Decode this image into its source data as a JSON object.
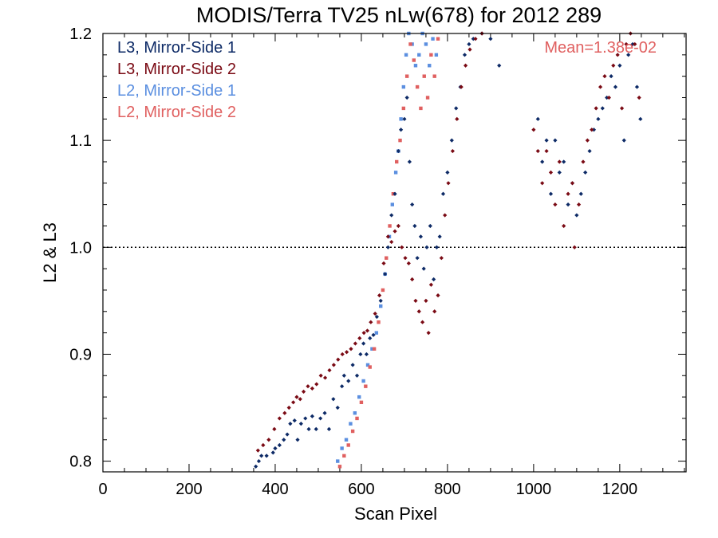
{
  "chart_data": {
    "type": "scatter",
    "title": "MODIS/Terra TV25 nLw(678) for 2012 289",
    "xlabel": "Scan Pixel",
    "ylabel": "L2 & L3",
    "xlim": [
      0,
      1354
    ],
    "ylim": [
      0.79,
      1.2
    ],
    "xticks": [
      {
        "value": 0,
        "label": "0"
      },
      {
        "value": 200,
        "label": "200"
      },
      {
        "value": 400,
        "label": "400"
      },
      {
        "value": 600,
        "label": "600"
      },
      {
        "value": 800,
        "label": "800"
      },
      {
        "value": 1000,
        "label": "1000"
      },
      {
        "value": 1200,
        "label": "1200"
      }
    ],
    "yticks": [
      {
        "value": 0.8,
        "label": "0.8"
      },
      {
        "value": 0.9,
        "label": "0.9"
      },
      {
        "value": 1.0,
        "label": "1.0"
      },
      {
        "value": 1.1,
        "label": "1.1"
      },
      {
        "value": 1.2,
        "label": "1.2"
      }
    ],
    "reference_line": {
      "y": 1.0,
      "style": "dotted"
    },
    "annotation": {
      "text": "Mean=1.38e-02",
      "color": "#e06060"
    },
    "legend_position": "top-left",
    "series": [
      {
        "name": "L3, Mirror-Side 1",
        "color": "#0d2a66",
        "marker": "diamond",
        "points": [
          [
            355,
            0.795
          ],
          [
            362,
            0.8
          ],
          [
            368,
            0.805
          ],
          [
            380,
            0.805
          ],
          [
            395,
            0.808
          ],
          [
            400,
            0.812
          ],
          [
            410,
            0.815
          ],
          [
            420,
            0.82
          ],
          [
            428,
            0.825
          ],
          [
            435,
            0.835
          ],
          [
            445,
            0.838
          ],
          [
            452,
            0.82
          ],
          [
            460,
            0.835
          ],
          [
            470,
            0.84
          ],
          [
            478,
            0.83
          ],
          [
            486,
            0.842
          ],
          [
            495,
            0.83
          ],
          [
            505,
            0.84
          ],
          [
            515,
            0.845
          ],
          [
            525,
            0.83
          ],
          [
            535,
            0.858
          ],
          [
            545,
            0.85
          ],
          [
            555,
            0.87
          ],
          [
            560,
            0.88
          ],
          [
            570,
            0.875
          ],
          [
            580,
            0.89
          ],
          [
            590,
            0.88
          ],
          [
            598,
            0.9
          ],
          [
            605,
            0.91
          ],
          [
            612,
            0.9
          ],
          [
            620,
            0.915
          ],
          [
            628,
            0.918
          ],
          [
            636,
            0.935
          ],
          [
            645,
            0.95
          ],
          [
            655,
            0.975
          ],
          [
            662,
            1.0
          ],
          [
            670,
            1.03
          ],
          [
            678,
            1.05
          ],
          [
            686,
            1.09
          ],
          [
            692,
            1.11
          ],
          [
            700,
            1.12
          ],
          [
            706,
            1.14
          ],
          [
            712,
            1.08
          ],
          [
            718,
            1.04
          ],
          [
            724,
            1.02
          ],
          [
            730,
            0.99
          ],
          [
            738,
            1.01
          ],
          [
            745,
            0.98
          ],
          [
            752,
            1.0
          ],
          [
            760,
            1.02
          ],
          [
            768,
            0.97
          ],
          [
            775,
            1.0
          ],
          [
            782,
            1.01
          ],
          [
            790,
            1.05
          ],
          [
            800,
            1.07
          ],
          [
            810,
            1.1
          ],
          [
            820,
            1.13
          ],
          [
            830,
            1.15
          ],
          [
            840,
            1.18
          ],
          [
            850,
            1.19
          ],
          [
            860,
            1.195
          ],
          [
            880,
            1.2
          ],
          [
            900,
            1.195
          ],
          [
            920,
            1.17
          ],
          [
            1010,
            1.12
          ],
          [
            1020,
            1.08
          ],
          [
            1030,
            1.1
          ],
          [
            1040,
            1.05
          ],
          [
            1050,
            1.1
          ],
          [
            1060,
            1.07
          ],
          [
            1070,
            1.08
          ],
          [
            1080,
            1.04
          ],
          [
            1090,
            1.06
          ],
          [
            1100,
            1.03
          ],
          [
            1110,
            1.05
          ],
          [
            1120,
            1.07
          ],
          [
            1130,
            1.09
          ],
          [
            1140,
            1.11
          ],
          [
            1150,
            1.12
          ],
          [
            1160,
            1.13
          ],
          [
            1170,
            1.14
          ],
          [
            1180,
            1.16
          ],
          [
            1190,
            1.15
          ],
          [
            1200,
            1.17
          ],
          [
            1210,
            1.1
          ],
          [
            1220,
            1.18
          ],
          [
            1230,
            1.19
          ],
          [
            1240,
            1.15
          ],
          [
            1248,
            1.12
          ]
        ]
      },
      {
        "name": "L3, Mirror-Side 2",
        "color": "#7a0a14",
        "marker": "diamond",
        "points": [
          [
            360,
            0.81
          ],
          [
            372,
            0.815
          ],
          [
            385,
            0.82
          ],
          [
            398,
            0.83
          ],
          [
            410,
            0.84
          ],
          [
            422,
            0.845
          ],
          [
            432,
            0.85
          ],
          [
            442,
            0.855
          ],
          [
            450,
            0.86
          ],
          [
            458,
            0.858
          ],
          [
            466,
            0.865
          ],
          [
            476,
            0.87
          ],
          [
            486,
            0.868
          ],
          [
            496,
            0.872
          ],
          [
            506,
            0.88
          ],
          [
            516,
            0.878
          ],
          [
            526,
            0.885
          ],
          [
            536,
            0.89
          ],
          [
            546,
            0.895
          ],
          [
            556,
            0.9
          ],
          [
            566,
            0.902
          ],
          [
            576,
            0.905
          ],
          [
            586,
            0.91
          ],
          [
            596,
            0.915
          ],
          [
            606,
            0.92
          ],
          [
            614,
            0.922
          ],
          [
            622,
            0.93
          ],
          [
            632,
            0.938
          ],
          [
            642,
            0.955
          ],
          [
            652,
            0.985
          ],
          [
            662,
            1.01
          ],
          [
            670,
            1.005
          ],
          [
            678,
            1.015
          ],
          [
            686,
            1.02
          ],
          [
            694,
            1.0
          ],
          [
            702,
            0.99
          ],
          [
            710,
            0.985
          ],
          [
            718,
            0.97
          ],
          [
            726,
            0.95
          ],
          [
            734,
            0.94
          ],
          [
            742,
            0.93
          ],
          [
            750,
            0.95
          ],
          [
            756,
            0.92
          ],
          [
            762,
            0.965
          ],
          [
            770,
            0.94
          ],
          [
            778,
            0.955
          ],
          [
            786,
            0.99
          ],
          [
            794,
            1.03
          ],
          [
            802,
            1.06
          ],
          [
            812,
            1.09
          ],
          [
            822,
            1.12
          ],
          [
            832,
            1.15
          ],
          [
            842,
            1.17
          ],
          [
            852,
            1.185
          ],
          [
            865,
            1.195
          ],
          [
            880,
            1.2
          ],
          [
            1000,
            1.11
          ],
          [
            1010,
            1.09
          ],
          [
            1020,
            1.06
          ],
          [
            1030,
            1.09
          ],
          [
            1040,
            1.07
          ],
          [
            1050,
            1.04
          ],
          [
            1060,
            1.08
          ],
          [
            1070,
            1.02
          ],
          [
            1080,
            1.05
          ],
          [
            1090,
            1.06
          ],
          [
            1095,
            1.0
          ],
          [
            1105,
            1.04
          ],
          [
            1115,
            1.08
          ],
          [
            1125,
            1.1
          ],
          [
            1135,
            1.11
          ],
          [
            1145,
            1.13
          ],
          [
            1155,
            1.15
          ],
          [
            1165,
            1.16
          ],
          [
            1175,
            1.14
          ],
          [
            1185,
            1.17
          ],
          [
            1195,
            1.18
          ],
          [
            1205,
            1.13
          ],
          [
            1215,
            1.19
          ],
          [
            1225,
            1.2
          ],
          [
            1235,
            1.19
          ],
          [
            1245,
            1.14
          ]
        ]
      },
      {
        "name": "L2, Mirror-Side 1",
        "color": "#5b8fe0",
        "marker": "square",
        "points": [
          [
            545,
            0.8
          ],
          [
            555,
            0.812
          ],
          [
            565,
            0.82
          ],
          [
            575,
            0.835
          ],
          [
            585,
            0.845
          ],
          [
            595,
            0.86
          ],
          [
            605,
            0.875
          ],
          [
            615,
            0.89
          ],
          [
            625,
            0.905
          ],
          [
            635,
            0.92
          ],
          [
            645,
            0.945
          ],
          [
            655,
            0.975
          ],
          [
            665,
            1.01
          ],
          [
            672,
            1.04
          ],
          [
            680,
            1.07
          ],
          [
            686,
            1.09
          ],
          [
            692,
            1.12
          ],
          [
            698,
            1.15
          ],
          [
            704,
            1.18
          ],
          [
            710,
            1.2
          ],
          [
            718,
            1.19
          ],
          [
            726,
            1.17
          ],
          [
            734,
            1.18
          ],
          [
            742,
            1.2
          ],
          [
            750,
            1.19
          ],
          [
            758,
            1.17
          ],
          [
            766,
            1.195
          ],
          [
            774,
            1.18
          ]
        ]
      },
      {
        "name": "L2, Mirror-Side 2",
        "color": "#e06060",
        "marker": "square",
        "points": [
          [
            550,
            0.795
          ],
          [
            560,
            0.805
          ],
          [
            570,
            0.815
          ],
          [
            580,
            0.828
          ],
          [
            590,
            0.84
          ],
          [
            600,
            0.855
          ],
          [
            610,
            0.87
          ],
          [
            620,
            0.888
          ],
          [
            630,
            0.905
          ],
          [
            640,
            0.93
          ],
          [
            650,
            0.96
          ],
          [
            658,
            0.99
          ],
          [
            666,
            1.02
          ],
          [
            674,
            1.05
          ],
          [
            682,
            1.08
          ],
          [
            690,
            1.1
          ],
          [
            698,
            1.13
          ],
          [
            706,
            1.16
          ],
          [
            714,
            1.19
          ],
          [
            722,
            1.175
          ],
          [
            730,
            1.15
          ],
          [
            738,
            1.13
          ],
          [
            746,
            1.16
          ],
          [
            754,
            1.14
          ],
          [
            762,
            1.18
          ],
          [
            770,
            1.16
          ],
          [
            778,
            1.195
          ]
        ]
      }
    ]
  }
}
